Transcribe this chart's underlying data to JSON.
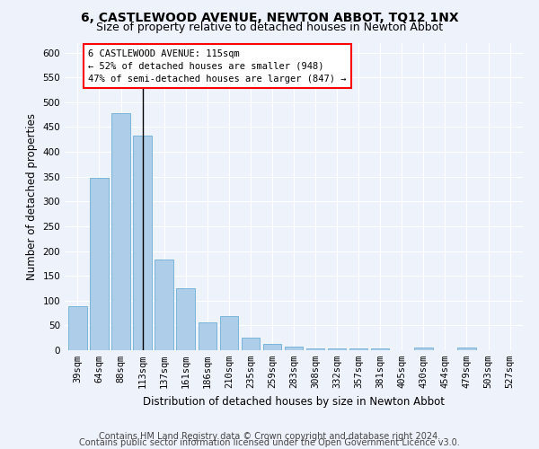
{
  "title": "6, CASTLEWOOD AVENUE, NEWTON ABBOT, TQ12 1NX",
  "subtitle": "Size of property relative to detached houses in Newton Abbot",
  "xlabel": "Distribution of detached houses by size in Newton Abbot",
  "ylabel": "Number of detached properties",
  "categories": [
    "39sqm",
    "64sqm",
    "88sqm",
    "113sqm",
    "137sqm",
    "161sqm",
    "186sqm",
    "210sqm",
    "235sqm",
    "259sqm",
    "283sqm",
    "308sqm",
    "332sqm",
    "357sqm",
    "381sqm",
    "405sqm",
    "430sqm",
    "454sqm",
    "479sqm",
    "503sqm",
    "527sqm"
  ],
  "values": [
    88,
    347,
    478,
    433,
    183,
    125,
    57,
    68,
    25,
    13,
    8,
    3,
    3,
    3,
    3,
    0,
    5,
    0,
    5,
    0,
    0
  ],
  "bar_color": "#aecde8",
  "bar_edge_color": "#6aaed6",
  "annotation_line1": "6 CASTLEWOOD AVENUE: 115sqm",
  "annotation_line2": "← 52% of detached houses are smaller (948)",
  "annotation_line3": "47% of semi-detached houses are larger (847) →",
  "annotation_box_color": "white",
  "annotation_box_edge_color": "red",
  "vline_x": 3.0,
  "ylim": [
    0,
    620
  ],
  "yticks": [
    0,
    50,
    100,
    150,
    200,
    250,
    300,
    350,
    400,
    450,
    500,
    550,
    600
  ],
  "footer_line1": "Contains HM Land Registry data © Crown copyright and database right 2024.",
  "footer_line2": "Contains public sector information licensed under the Open Government Licence v3.0.",
  "bg_color": "#eef2fb",
  "plot_bg_color": "#eef2fb",
  "title_fontsize": 10,
  "subtitle_fontsize": 9,
  "axis_label_fontsize": 8.5,
  "tick_fontsize": 7.5,
  "footer_fontsize": 7
}
